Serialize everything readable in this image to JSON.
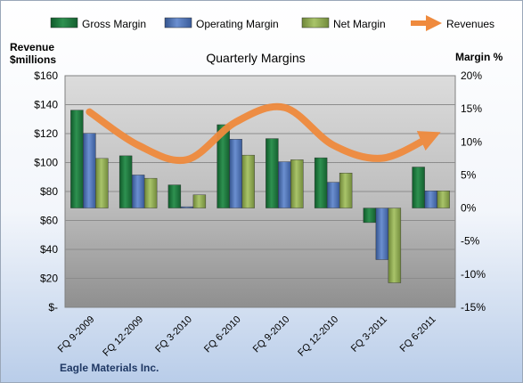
{
  "chart_data": {
    "type": "bar",
    "title": "Quarterly Margins",
    "company": "Eagle Materials Inc.",
    "left_axis_title": [
      "Revenue",
      "$millions"
    ],
    "right_axis_title": "Margin %",
    "left_axis": {
      "range": [
        0,
        160
      ],
      "ticks": [
        "$-",
        "$20",
        "$40",
        "$60",
        "$80",
        "$100",
        "$120",
        "$140",
        "$160"
      ]
    },
    "right_axis": {
      "range": [
        -15,
        20
      ],
      "ticks": [
        "-15%",
        "-10%",
        "-5%",
        "0%",
        "5%",
        "10%",
        "15%",
        "20%"
      ]
    },
    "categories": [
      "FQ 9-2009",
      "FQ 12-2009",
      "FQ 3-2010",
      "FQ 6-2010",
      "FQ 9-2010",
      "FQ 12-2010",
      "FQ 3-2011",
      "FQ 6-2011"
    ],
    "series": [
      {
        "name": "Gross Margin",
        "axis": "right",
        "color": "#1e7b3f",
        "values": [
          14.8,
          7.9,
          3.5,
          12.6,
          10.5,
          7.6,
          -2.2,
          6.2
        ]
      },
      {
        "name": "Operating Margin",
        "axis": "right",
        "color": "#4a6fb5",
        "values": [
          11.3,
          5.0,
          0.2,
          10.4,
          7.0,
          3.9,
          -7.8,
          2.6
        ]
      },
      {
        "name": "Net Margin",
        "axis": "right",
        "color": "#8ea850",
        "values": [
          7.5,
          4.5,
          2.0,
          8.0,
          7.3,
          5.3,
          -11.3,
          2.6
        ]
      },
      {
        "name": "Revenues",
        "axis": "left",
        "type": "line",
        "color": "#ef8a3d",
        "values": [
          135,
          112,
          102,
          128,
          138,
          112,
          103,
          118
        ]
      }
    ],
    "grid": true,
    "legend": "top"
  }
}
